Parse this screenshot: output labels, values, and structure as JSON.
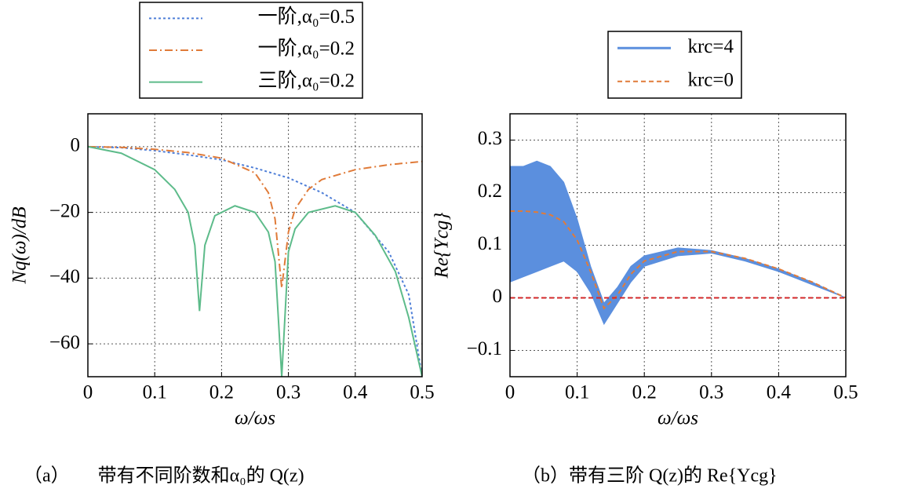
{
  "chart_data": [
    {
      "type": "line",
      "xlabel": "ω/ωs",
      "ylabel": "Nq(ω)/dB",
      "caption": "（a）　　带有不同阶数和α₀的 Q(z)",
      "xlim": [
        0,
        0.5
      ],
      "xticks": [
        0,
        0.1,
        0.2,
        0.3,
        0.4,
        0.5
      ],
      "ylim": [
        -70,
        10
      ],
      "yticks": [
        {
          "value": -60,
          "label": "−60"
        },
        {
          "value": -40,
          "label": "−40"
        },
        {
          "value": -20,
          "label": "−20"
        },
        0
      ],
      "grid": true,
      "series": [
        {
          "name": "一阶,α₀=0.5",
          "color": "#4f7fd8",
          "style": "dotted",
          "x": [
            0,
            0.05,
            0.1,
            0.15,
            0.2,
            0.25,
            0.3,
            0.35,
            0.4,
            0.45,
            0.48,
            0.5
          ],
          "values": [
            0,
            -0.3,
            -1.2,
            -2.5,
            -4,
            -6.5,
            -9.5,
            -14,
            -20,
            -32,
            -45,
            -70
          ]
        },
        {
          "name": "一阶,α₀=0.2",
          "color": "#e07b39",
          "style": "dashdot",
          "x": [
            0,
            0.05,
            0.1,
            0.15,
            0.2,
            0.25,
            0.27,
            0.28,
            0.29,
            0.3,
            0.31,
            0.33,
            0.35,
            0.4,
            0.45,
            0.5
          ],
          "values": [
            0,
            -0.2,
            -0.8,
            -1.8,
            -3.5,
            -8,
            -14,
            -22,
            -43,
            -26,
            -19,
            -13,
            -10,
            -7,
            -5.5,
            -4.5
          ]
        },
        {
          "name": "三阶,α₀=0.2",
          "color": "#5dbb8a",
          "style": "solid",
          "x": [
            0,
            0.05,
            0.1,
            0.13,
            0.15,
            0.16,
            0.167,
            0.175,
            0.19,
            0.22,
            0.25,
            0.27,
            0.28,
            0.29,
            0.3,
            0.31,
            0.33,
            0.37,
            0.4,
            0.43,
            0.46,
            0.48,
            0.5
          ],
          "values": [
            0,
            -2,
            -7,
            -13,
            -20,
            -30,
            -50,
            -30,
            -21,
            -18,
            -20,
            -26,
            -35,
            -70,
            -32,
            -25,
            -20,
            -18,
            -20,
            -27,
            -38,
            -52,
            -70
          ]
        }
      ]
    },
    {
      "type": "band",
      "xlabel": "ω/ωs",
      "ylabel": "Re{Ycg}",
      "caption": "（b）带有三阶 Q(z)的 Re{Ycg}",
      "xlim": [
        0,
        0.5
      ],
      "xticks": [
        0,
        0.1,
        0.2,
        0.3,
        0.4,
        0.5
      ],
      "ylim": [
        -0.15,
        0.35
      ],
      "yticks": [
        {
          "value": -0.1,
          "label": "−0.1"
        },
        0,
        0.1,
        0.2,
        0.3
      ],
      "grid": true,
      "zero_line": true,
      "zero_line_color": "#d62728",
      "series": [
        {
          "name": "krc=4",
          "color": "#5b8fde",
          "style": "band",
          "x": [
            0,
            0.02,
            0.04,
            0.06,
            0.08,
            0.1,
            0.12,
            0.14,
            0.16,
            0.18,
            0.2,
            0.25,
            0.3,
            0.35,
            0.4,
            0.45,
            0.5
          ],
          "values": [
            0.25,
            0.25,
            0.26,
            0.25,
            0.22,
            0.15,
            0.06,
            -0.01,
            0.02,
            0.06,
            0.08,
            0.095,
            0.09,
            0.075,
            0.055,
            0.03,
            0
          ],
          "lower": [
            0.03,
            0.04,
            0.05,
            0.06,
            0.07,
            0.05,
            0.01,
            -0.05,
            -0.01,
            0.03,
            0.06,
            0.08,
            0.085,
            0.07,
            0.05,
            0.025,
            0
          ]
        },
        {
          "name": "krc=0",
          "color": "#e07b39",
          "style": "dashed",
          "x": [
            0,
            0.02,
            0.04,
            0.06,
            0.08,
            0.1,
            0.12,
            0.14,
            0.16,
            0.18,
            0.2,
            0.25,
            0.3,
            0.35,
            0.4,
            0.45,
            0.5
          ],
          "values": [
            0.165,
            0.165,
            0.163,
            0.158,
            0.145,
            0.11,
            0.05,
            -0.02,
            0.005,
            0.045,
            0.07,
            0.088,
            0.088,
            0.075,
            0.055,
            0.03,
            0
          ]
        }
      ]
    }
  ]
}
